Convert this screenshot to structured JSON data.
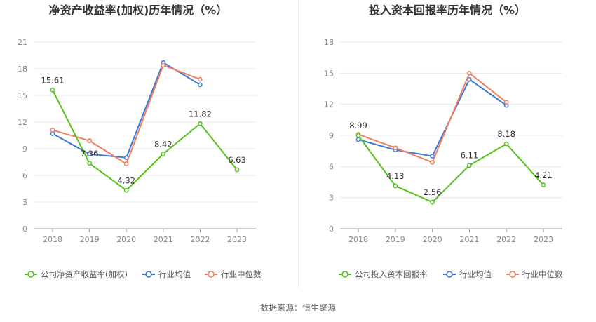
{
  "colors": {
    "company": "#52c41a",
    "industry_avg": "#3c78d8",
    "industry_median": "#f08060",
    "grid": "#e8e8e8",
    "axis": "#999999"
  },
  "source_text": "数据来源：恒生聚源",
  "chart_data": [
    {
      "type": "line",
      "title": "净资产收益率(加权)历年情况（%）",
      "categories": [
        "2018",
        "2019",
        "2020",
        "2021",
        "2022",
        "2023"
      ],
      "yticks": [
        "0",
        "3",
        "6",
        "9",
        "12",
        "15",
        "18",
        "21"
      ],
      "ylim": [
        0,
        21
      ],
      "series": [
        {
          "name": "公司净资产收益率(加权)",
          "key": "company",
          "values": [
            15.61,
            7.36,
            4.32,
            8.42,
            11.82,
            6.63
          ],
          "labels": [
            "15.61",
            "7.36",
            "4.32",
            "8.42",
            "11.82",
            "6.63"
          ]
        },
        {
          "name": "行业均值",
          "key": "industry_avg",
          "values": [
            10.7,
            8.4,
            8.0,
            18.7,
            16.2,
            null
          ]
        },
        {
          "name": "行业中位数",
          "key": "industry_median",
          "values": [
            11.1,
            9.9,
            7.3,
            18.4,
            16.8,
            null
          ]
        }
      ]
    },
    {
      "type": "line",
      "title": "投入资本回报率历年情况（%）",
      "categories": [
        "2018",
        "2019",
        "2020",
        "2021",
        "2022",
        "2023"
      ],
      "yticks": [
        "0",
        "3",
        "6",
        "9",
        "12",
        "15",
        "18"
      ],
      "ylim": [
        0,
        18
      ],
      "series": [
        {
          "name": "公司投入资本回报率",
          "key": "company",
          "values": [
            8.99,
            4.13,
            2.56,
            6.11,
            8.18,
            4.21
          ],
          "labels": [
            "8.99",
            "4.13",
            "2.56",
            "6.11",
            "8.18",
            "4.21"
          ]
        },
        {
          "name": "行业均值",
          "key": "industry_avg",
          "values": [
            8.6,
            7.6,
            7.0,
            14.4,
            11.9,
            null
          ]
        },
        {
          "name": "行业中位数",
          "key": "industry_median",
          "values": [
            9.1,
            7.8,
            6.4,
            15.0,
            12.2,
            null
          ]
        }
      ]
    }
  ]
}
